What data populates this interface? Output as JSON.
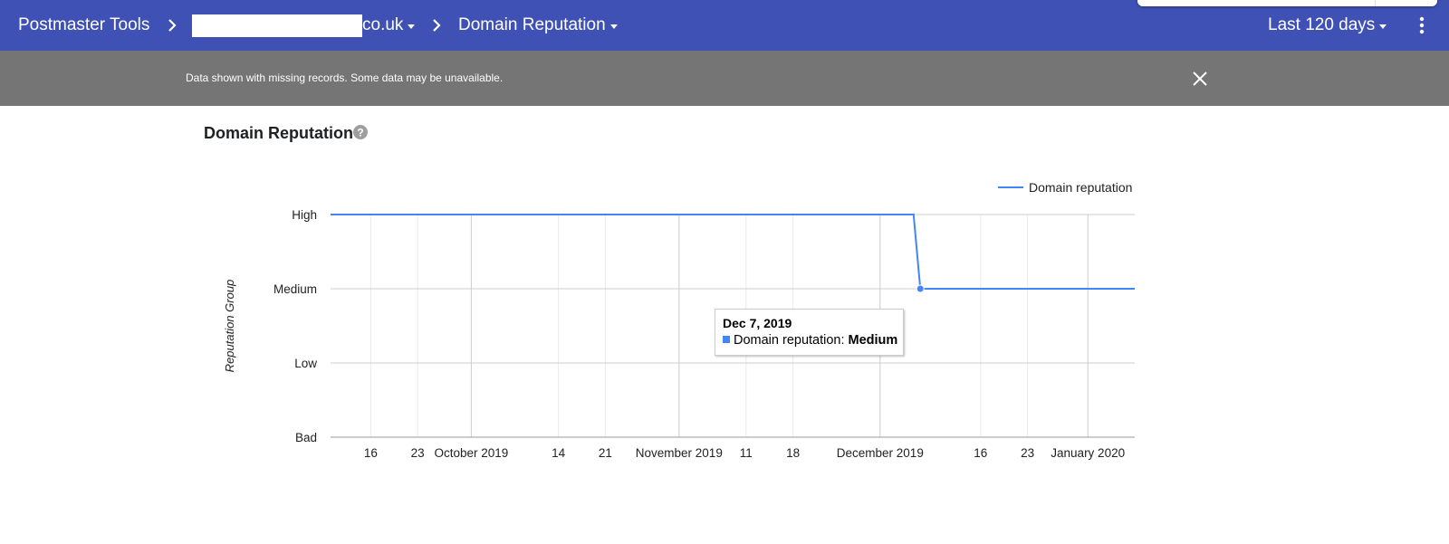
{
  "header": {
    "app_title": "Postmaster Tools",
    "domain_suffix": "co.uk",
    "section": "Domain Reputation",
    "date_range": "Last 120 days",
    "brand_color": "#3f51b5"
  },
  "banner": {
    "message": "Data shown with missing records. Some data may be unavailable."
  },
  "page": {
    "title": "Domain Reputation"
  },
  "tooltip": {
    "date": "Dec 7, 2019",
    "series": "Domain reputation:",
    "value": "Medium"
  },
  "icons": [
    "chevron-right-icon",
    "caret-down-icon",
    "more-vert-icon",
    "close-icon",
    "help-icon"
  ],
  "chart_data": {
    "type": "line",
    "title": "Domain Reputation",
    "ylabel": "Reputation Group",
    "xlabel": "",
    "y_categories": [
      "Bad",
      "Low",
      "Medium",
      "High"
    ],
    "x_range": [
      "2019-09-10",
      "2020-01-08"
    ],
    "x_ticks": [
      {
        "date": "2019-09-16",
        "label": "16",
        "major": false
      },
      {
        "date": "2019-09-23",
        "label": "23",
        "major": false
      },
      {
        "date": "2019-10-01",
        "label": "October 2019",
        "major": true
      },
      {
        "date": "2019-10-14",
        "label": "14",
        "major": false
      },
      {
        "date": "2019-10-21",
        "label": "21",
        "major": false
      },
      {
        "date": "2019-11-01",
        "label": "November 2019",
        "major": true
      },
      {
        "date": "2019-11-11",
        "label": "11",
        "major": false
      },
      {
        "date": "2019-11-18",
        "label": "18",
        "major": false
      },
      {
        "date": "2019-12-01",
        "label": "December 2019",
        "major": true
      },
      {
        "date": "2019-12-16",
        "label": "16",
        "major": false
      },
      {
        "date": "2019-12-23",
        "label": "23",
        "major": false
      },
      {
        "date": "2020-01-01",
        "label": "January 2020",
        "major": true
      }
    ],
    "series": [
      {
        "name": "Domain reputation",
        "color": "#4285f4",
        "points": [
          {
            "x": "2019-09-10",
            "y": "High"
          },
          {
            "x": "2019-12-06",
            "y": "High"
          },
          {
            "x": "2019-12-07",
            "y": "Medium"
          },
          {
            "x": "2020-01-08",
            "y": "Medium"
          }
        ]
      }
    ],
    "highlighted_point": {
      "x": "2019-12-07",
      "y": "Medium"
    },
    "legend_position": "top-right",
    "grid": true
  }
}
